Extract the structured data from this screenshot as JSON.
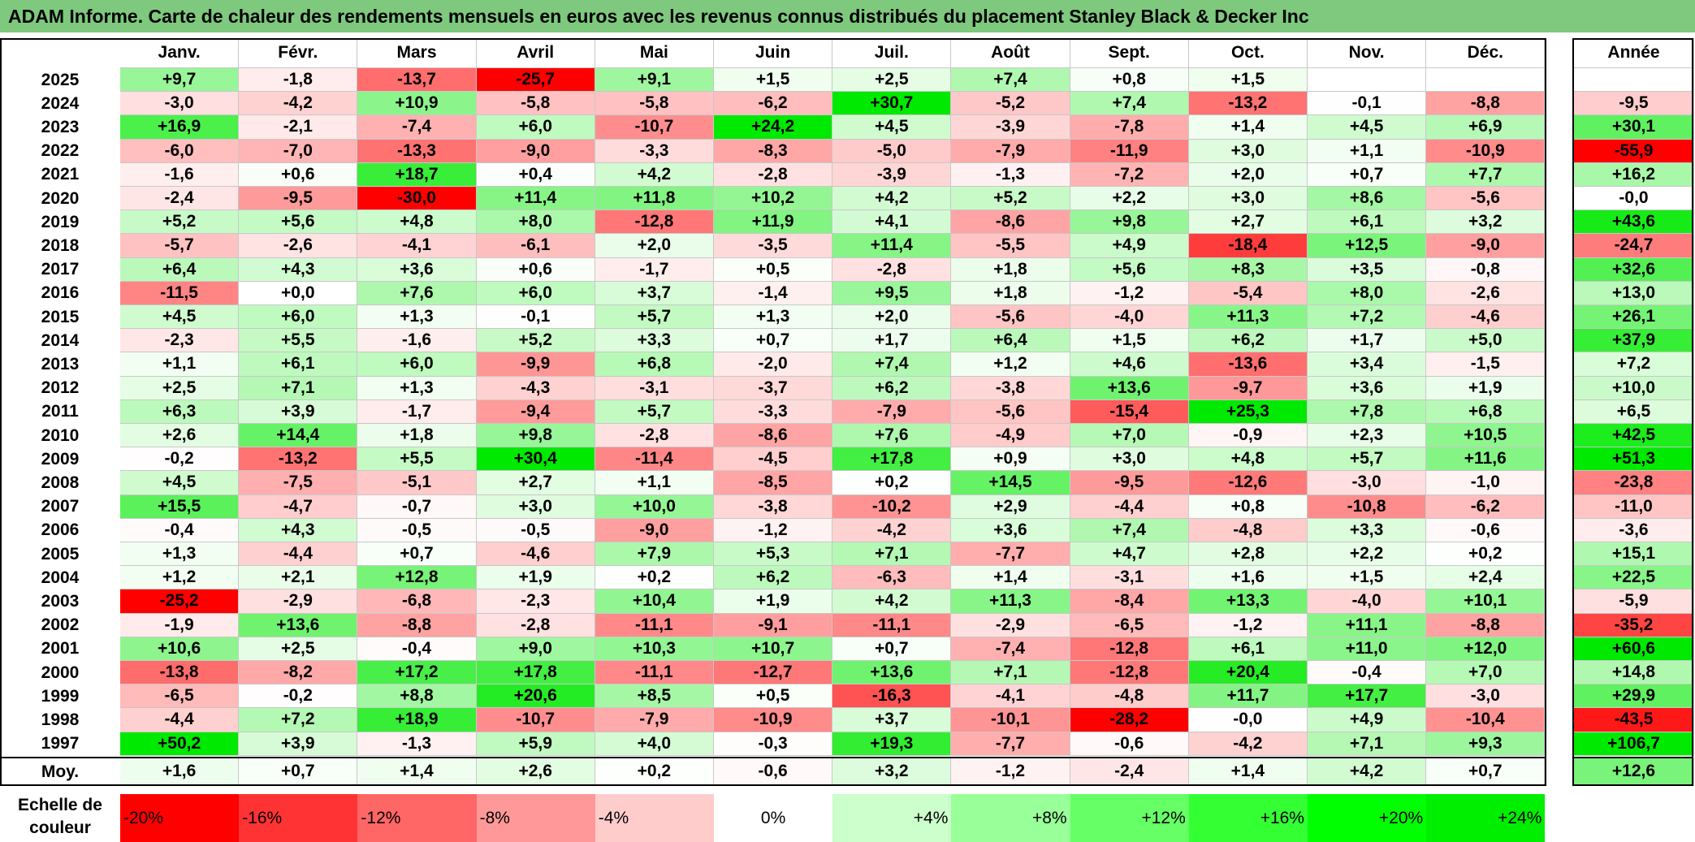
{
  "title": "ADAM Informe. Carte de chaleur des rendements mensuels en euros avec les revenus connus distribués du placement Stanley Black & Decker Inc",
  "chart_data": {
    "type": "heatmap",
    "months": [
      "Janv.",
      "Févr.",
      "Mars",
      "Avril",
      "Mai",
      "Juin",
      "Juil.",
      "Août",
      "Sept.",
      "Oct.",
      "Nov.",
      "Déc."
    ],
    "annual_label": "Année",
    "avg_label": "Moy.",
    "rows": [
      {
        "year": "2025",
        "values": [
          "+9,7",
          "-1,8",
          "-13,7",
          "-25,7",
          "+9,1",
          "+1,5",
          "+2,5",
          "+7,4",
          "+0,8",
          "+1,5",
          "",
          ""
        ],
        "annual": ""
      },
      {
        "year": "2024",
        "values": [
          "-3,0",
          "-4,2",
          "+10,9",
          "-5,8",
          "-5,8",
          "-6,2",
          "+30,7",
          "-5,2",
          "+7,4",
          "-13,2",
          "-0,1",
          "-8,8"
        ],
        "annual": "-9,5"
      },
      {
        "year": "2023",
        "values": [
          "+16,9",
          "-2,1",
          "-7,4",
          "+6,0",
          "-10,7",
          "+24,2",
          "+4,5",
          "-3,9",
          "-7,8",
          "+1,4",
          "+4,5",
          "+6,9"
        ],
        "annual": "+30,1"
      },
      {
        "year": "2022",
        "values": [
          "-6,0",
          "-7,0",
          "-13,3",
          "-9,0",
          "-3,3",
          "-8,3",
          "-5,0",
          "-7,9",
          "-11,9",
          "+3,0",
          "+1,1",
          "-10,9"
        ],
        "annual": "-55,9"
      },
      {
        "year": "2021",
        "values": [
          "-1,6",
          "+0,6",
          "+18,7",
          "+0,4",
          "+4,2",
          "-2,8",
          "-3,9",
          "-1,3",
          "-7,2",
          "+2,0",
          "+0,7",
          "+7,7"
        ],
        "annual": "+16,2"
      },
      {
        "year": "2020",
        "values": [
          "-2,4",
          "-9,5",
          "-30,0",
          "+11,4",
          "+11,8",
          "+10,2",
          "+4,2",
          "+5,2",
          "+2,2",
          "+3,0",
          "+8,6",
          "-5,6"
        ],
        "annual": "-0,0"
      },
      {
        "year": "2019",
        "values": [
          "+5,2",
          "+5,6",
          "+4,8",
          "+8,0",
          "-12,8",
          "+11,9",
          "+4,1",
          "-8,6",
          "+9,8",
          "+2,7",
          "+6,1",
          "+3,2"
        ],
        "annual": "+43,6"
      },
      {
        "year": "2018",
        "values": [
          "-5,7",
          "-2,6",
          "-4,1",
          "-6,1",
          "+2,0",
          "-3,5",
          "+11,4",
          "-5,5",
          "+4,9",
          "-18,4",
          "+12,5",
          "-9,0"
        ],
        "annual": "-24,7"
      },
      {
        "year": "2017",
        "values": [
          "+6,4",
          "+4,3",
          "+3,6",
          "+0,6",
          "-1,7",
          "+0,5",
          "-2,8",
          "+1,8",
          "+5,6",
          "+8,3",
          "+3,5",
          "-0,8"
        ],
        "annual": "+32,6"
      },
      {
        "year": "2016",
        "values": [
          "-11,5",
          "+0,0",
          "+7,6",
          "+6,0",
          "+3,7",
          "-1,4",
          "+9,5",
          "+1,8",
          "-1,2",
          "-5,4",
          "+8,0",
          "-2,6"
        ],
        "annual": "+13,0"
      },
      {
        "year": "2015",
        "values": [
          "+4,5",
          "+6,0",
          "+1,3",
          "-0,1",
          "+5,7",
          "+1,3",
          "+2,0",
          "-5,6",
          "-4,0",
          "+11,3",
          "+7,2",
          "-4,6"
        ],
        "annual": "+26,1"
      },
      {
        "year": "2014",
        "values": [
          "-2,3",
          "+5,5",
          "-1,6",
          "+5,2",
          "+3,3",
          "+0,7",
          "+1,7",
          "+6,4",
          "+1,5",
          "+6,2",
          "+1,7",
          "+5,0"
        ],
        "annual": "+37,9"
      },
      {
        "year": "2013",
        "values": [
          "+1,1",
          "+6,1",
          "+6,0",
          "-9,9",
          "+6,8",
          "-2,0",
          "+7,4",
          "+1,2",
          "+4,6",
          "-13,6",
          "+3,4",
          "-1,5"
        ],
        "annual": "+7,2"
      },
      {
        "year": "2012",
        "values": [
          "+2,5",
          "+7,1",
          "+1,3",
          "-4,3",
          "-3,1",
          "-3,7",
          "+6,2",
          "-3,8",
          "+13,6",
          "-9,7",
          "+3,6",
          "+1,9"
        ],
        "annual": "+10,0"
      },
      {
        "year": "2011",
        "values": [
          "+6,3",
          "+3,9",
          "-1,7",
          "-9,4",
          "+5,7",
          "-3,3",
          "-7,9",
          "-5,6",
          "-15,4",
          "+25,3",
          "+7,8",
          "+6,8"
        ],
        "annual": "+6,5"
      },
      {
        "year": "2010",
        "values": [
          "+2,6",
          "+14,4",
          "+1,8",
          "+9,8",
          "-2,8",
          "-8,6",
          "+7,6",
          "-4,9",
          "+7,0",
          "-0,9",
          "+2,3",
          "+10,5"
        ],
        "annual": "+42,5"
      },
      {
        "year": "2009",
        "values": [
          "-0,2",
          "-13,2",
          "+5,5",
          "+30,4",
          "-11,4",
          "-4,5",
          "+17,8",
          "+0,9",
          "+3,0",
          "+4,8",
          "+5,7",
          "+11,6"
        ],
        "annual": "+51,3"
      },
      {
        "year": "2008",
        "values": [
          "+4,5",
          "-7,5",
          "-5,1",
          "+2,7",
          "+1,1",
          "-8,5",
          "+0,2",
          "+14,5",
          "-9,5",
          "-12,6",
          "-3,0",
          "-1,0"
        ],
        "annual": "-23,8"
      },
      {
        "year": "2007",
        "values": [
          "+15,5",
          "-4,7",
          "-0,7",
          "+3,0",
          "+10,0",
          "-3,8",
          "-10,2",
          "+2,9",
          "-4,4",
          "+0,8",
          "-10,8",
          "-6,2"
        ],
        "annual": "-11,0"
      },
      {
        "year": "2006",
        "values": [
          "-0,4",
          "+4,3",
          "-0,5",
          "-0,5",
          "-9,0",
          "-1,2",
          "-4,2",
          "+3,6",
          "+7,4",
          "-4,8",
          "+3,3",
          "-0,6"
        ],
        "annual": "-3,6"
      },
      {
        "year": "2005",
        "values": [
          "+1,3",
          "-4,4",
          "+0,7",
          "-4,6",
          "+7,9",
          "+5,3",
          "+7,1",
          "-7,7",
          "+4,7",
          "+2,8",
          "+2,2",
          "+0,2"
        ],
        "annual": "+15,1"
      },
      {
        "year": "2004",
        "values": [
          "+1,2",
          "+2,1",
          "+12,8",
          "+1,9",
          "+0,2",
          "+6,2",
          "-6,3",
          "+1,4",
          "-3,1",
          "+1,6",
          "+1,5",
          "+2,4"
        ],
        "annual": "+22,5"
      },
      {
        "year": "2003",
        "values": [
          "-25,2",
          "-2,9",
          "-6,8",
          "-2,3",
          "+10,4",
          "+1,9",
          "+4,2",
          "+11,3",
          "-8,4",
          "+13,3",
          "-4,0",
          "+10,1"
        ],
        "annual": "-5,9"
      },
      {
        "year": "2002",
        "values": [
          "-1,9",
          "+13,6",
          "-8,8",
          "-2,8",
          "-11,1",
          "-9,1",
          "-11,1",
          "-2,9",
          "-6,5",
          "-1,2",
          "+11,1",
          "-8,8"
        ],
        "annual": "-35,2"
      },
      {
        "year": "2001",
        "values": [
          "+10,6",
          "+2,5",
          "-0,4",
          "+9,0",
          "+10,3",
          "+10,7",
          "+0,7",
          "-7,4",
          "-12,8",
          "+6,1",
          "+11,0",
          "+12,0"
        ],
        "annual": "+60,6"
      },
      {
        "year": "2000",
        "values": [
          "-13,8",
          "-8,2",
          "+17,2",
          "+17,8",
          "-11,1",
          "-12,7",
          "+13,6",
          "+7,1",
          "-12,8",
          "+20,4",
          "-0,4",
          "+7,0"
        ],
        "annual": "+14,8"
      },
      {
        "year": "1999",
        "values": [
          "-6,5",
          "-0,2",
          "+8,8",
          "+20,6",
          "+8,5",
          "+0,5",
          "-16,3",
          "-4,1",
          "-4,8",
          "+11,7",
          "+17,7",
          "-3,0"
        ],
        "annual": "+29,9"
      },
      {
        "year": "1998",
        "values": [
          "-4,4",
          "+7,2",
          "+18,9",
          "-10,7",
          "-7,9",
          "-10,9",
          "+3,7",
          "-10,1",
          "-28,2",
          "-0,0",
          "+4,9",
          "-10,4"
        ],
        "annual": "-43,5"
      },
      {
        "year": "1997",
        "values": [
          "+50,2",
          "+3,9",
          "-1,3",
          "+5,9",
          "+4,0",
          "-0,3",
          "+19,3",
          "-7,7",
          "-0,6",
          "-4,2",
          "+7,1",
          "+9,3"
        ],
        "annual": "+106,7"
      }
    ],
    "averages": [
      "+1,6",
      "+0,7",
      "+1,4",
      "+2,6",
      "+0,2",
      "-0,6",
      "+3,2",
      "-1,2",
      "-2,4",
      "+1,4",
      "+4,2",
      "+0,7"
    ],
    "avg_annual": "+12,6",
    "scale_label": "Echelle de couleur",
    "scale": [
      "-20%",
      "-16%",
      "-12%",
      "-8%",
      "-4%",
      "0%",
      "+4%",
      "+8%",
      "+12%",
      "+16%",
      "+20%",
      "+24%"
    ],
    "scale_colors": [
      "#ff0000",
      "#ff3333",
      "#ff6666",
      "#ff9999",
      "#ffcccc",
      "#ffffff",
      "#ccffcc",
      "#99ff99",
      "#66ff66",
      "#33ff33",
      "#00ff00",
      "#00ee00"
    ],
    "colors": {
      "title_bg": "#7fc97f",
      "negative": "#ff0000",
      "positive": "#00ee00",
      "neutral": "#ffffff"
    }
  }
}
